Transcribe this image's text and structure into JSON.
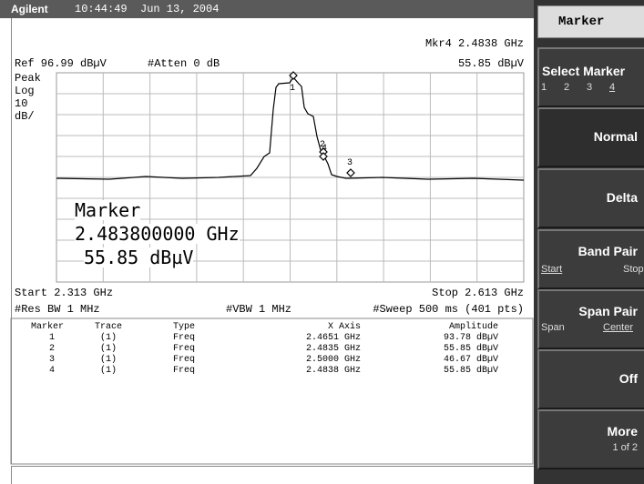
{
  "header": {
    "brand": "Agilent",
    "time": "10:44:49",
    "date": "Jun 13, 2004"
  },
  "display": {
    "mkr_freq": "Mkr4 2.4838 GHz",
    "mkr_amp": "55.85 dBµV",
    "ref": "Ref 96.99 dBµV",
    "atten": "#Atten 0 dB",
    "scale": [
      "Peak",
      "Log",
      "10",
      "dB/"
    ],
    "marker_labels": [
      "1",
      "2",
      "3",
      "4"
    ],
    "overlay": {
      "title": "Marker",
      "freq": "2.483800000 GHz",
      "amp": "55.85 dBµV"
    },
    "start": "Start 2.313 GHz",
    "stop": "Stop 2.613 GHz",
    "res_bw": "#Res BW 1 MHz",
    "vbw": "#VBW 1 MHz",
    "sweep": "#Sweep 500 ms (401 pts)"
  },
  "table": {
    "columns": [
      "Marker",
      "Trace",
      "Type",
      "X Axis",
      "Amplitude"
    ],
    "rows": [
      [
        "1",
        "(1)",
        "Freq",
        "2.4651 GHz",
        "93.78 dBµV"
      ],
      [
        "2",
        "(1)",
        "Freq",
        "2.4835 GHz",
        "55.85 dBµV"
      ],
      [
        "3",
        "(1)",
        "Freq",
        "2.5000 GHz",
        "46.67 dBµV"
      ],
      [
        "4",
        "(1)",
        "Freq",
        "2.4838 GHz",
        "55.85 dBµV"
      ]
    ]
  },
  "softkeys": {
    "title": "Marker",
    "keys": [
      {
        "label": "Select Marker",
        "sub": [
          "1",
          "2",
          "3",
          "4"
        ]
      },
      {
        "label": "Normal"
      },
      {
        "label": "Delta"
      },
      {
        "label": "Band Pair",
        "sub": [
          "Start",
          "Stop"
        ]
      },
      {
        "label": "Span Pair",
        "sub": [
          "Span",
          "Center"
        ]
      },
      {
        "label": "Off"
      },
      {
        "label": "More",
        "sub": [
          "1 of 2"
        ]
      }
    ]
  }
}
